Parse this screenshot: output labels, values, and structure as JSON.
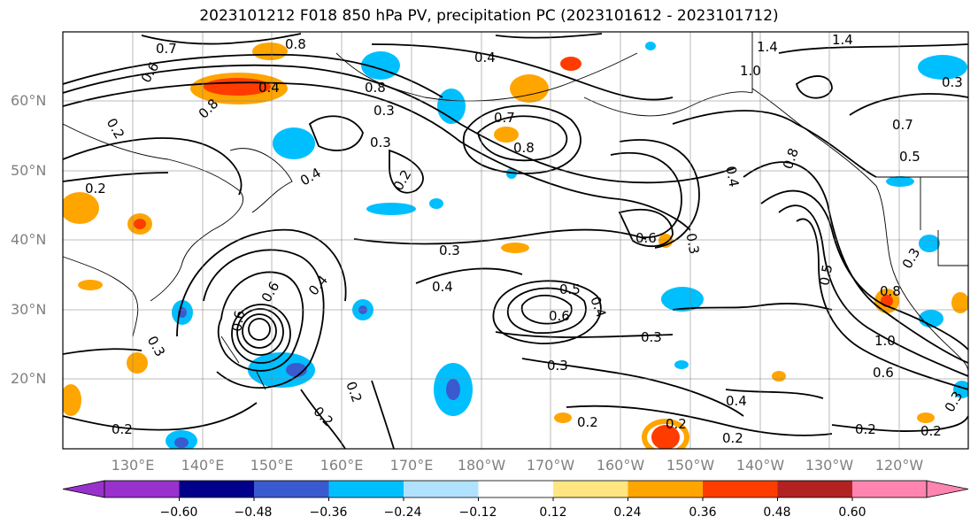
{
  "title": "2023101212 F018 850 hPa PV, precipitation PC (2023101612 - 2023101712)",
  "latitude_labels": [
    "60°N",
    "50°N",
    "40°N",
    "30°N",
    "20°N"
  ],
  "longitude_labels": [
    "130°E",
    "140°E",
    "150°E",
    "160°E",
    "170°E",
    "180°W",
    "170°W",
    "160°W",
    "150°W",
    "140°W",
    "130°W",
    "120°W"
  ],
  "colorbar": {
    "tick_labels": [
      "−0.60",
      "−0.48",
      "−0.36",
      "−0.24",
      "−0.12",
      "0.12",
      "0.24",
      "0.36",
      "0.48",
      "0.60"
    ],
    "colors": [
      "#9932cc",
      "#00008b",
      "#3a5bd0",
      "#00bfff",
      "#b0e2ff",
      "#ffffff",
      "#ffe680",
      "#ffa500",
      "#ff3c00",
      "#b22222",
      "#ff85b0"
    ]
  },
  "contour_labels": [
    "0.7",
    "0.8",
    "0.6",
    "0.4",
    "0.2",
    "0.8",
    "0.3",
    "0.4",
    "0.2",
    "0.2",
    "0.8",
    "0.3",
    "0.4",
    "0.3",
    "0.3",
    "0.7",
    "0.8",
    "0.6",
    "0.4",
    "0.3",
    "0.5",
    "0.6",
    "0.4",
    "0.3",
    "0.3",
    "0.2",
    "0.2",
    "0.2",
    "0.2",
    "0.4",
    "0.2",
    "1.4",
    "1.4",
    "1.0",
    "0.7",
    "0.5",
    "0.8",
    "0.4",
    "0.3",
    "1.0",
    "0.6",
    "0.5",
    "0.8",
    "0.2",
    "0.2",
    "0.3",
    "0.2",
    "0.6",
    "0.4",
    "0.6",
    "0.3"
  ]
}
